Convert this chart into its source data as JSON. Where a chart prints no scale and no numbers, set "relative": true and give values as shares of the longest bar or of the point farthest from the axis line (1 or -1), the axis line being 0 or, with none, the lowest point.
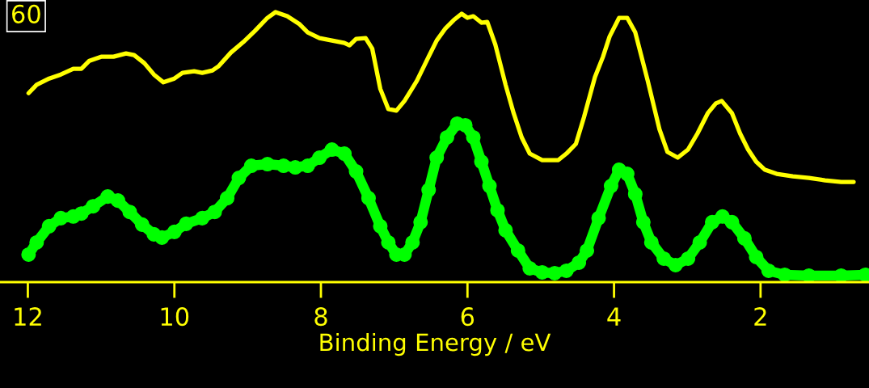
{
  "chart_data": {
    "type": "line",
    "relative": true,
    "xlabel": "Binding Energy / eV",
    "xlim": [
      12.38,
      0.52
    ],
    "xticks": [
      12,
      10,
      8,
      6,
      4,
      2
    ],
    "grid": false,
    "legend": false,
    "annotations": [
      "60"
    ],
    "series": [
      {
        "color": "#ffff00",
        "marker": "none",
        "line_style": "solid",
        "x": [
          11.99,
          11.88,
          11.71,
          11.55,
          11.38,
          11.27,
          11.16,
          11.0,
          10.83,
          10.66,
          10.55,
          10.41,
          10.28,
          10.15,
          10.0,
          9.89,
          9.73,
          9.62,
          9.48,
          9.4,
          9.23,
          9.06,
          8.9,
          8.73,
          8.62,
          8.46,
          8.29,
          8.18,
          8.02,
          7.85,
          7.68,
          7.61,
          7.52,
          7.39,
          7.3,
          7.19,
          7.08,
          6.97,
          6.86,
          6.69,
          6.53,
          6.42,
          6.3,
          6.19,
          6.08,
          6.0,
          5.92,
          5.81,
          5.73,
          5.62,
          5.48,
          5.37,
          5.26,
          5.15,
          4.98,
          4.76,
          4.65,
          4.52,
          4.41,
          4.26,
          4.15,
          4.06,
          3.93,
          3.82,
          3.71,
          3.54,
          3.38,
          3.27,
          3.13,
          2.99,
          2.86,
          2.72,
          2.61,
          2.53,
          2.39,
          2.28,
          2.17,
          2.06,
          1.94,
          1.78,
          1.56,
          1.34,
          1.12,
          0.9,
          0.73
        ],
        "values": [
          0.7,
          0.731,
          0.754,
          0.769,
          0.79,
          0.79,
          0.82,
          0.835,
          0.835,
          0.847,
          0.841,
          0.811,
          0.769,
          0.74,
          0.754,
          0.775,
          0.781,
          0.775,
          0.784,
          0.799,
          0.85,
          0.889,
          0.931,
          0.979,
          1.0,
          0.985,
          0.955,
          0.925,
          0.904,
          0.895,
          0.886,
          0.877,
          0.901,
          0.904,
          0.865,
          0.716,
          0.641,
          0.635,
          0.671,
          0.746,
          0.835,
          0.895,
          0.94,
          0.97,
          0.994,
          0.979,
          0.985,
          0.961,
          0.964,
          0.88,
          0.731,
          0.626,
          0.536,
          0.476,
          0.452,
          0.452,
          0.476,
          0.512,
          0.611,
          0.76,
          0.835,
          0.91,
          0.979,
          0.979,
          0.925,
          0.746,
          0.566,
          0.482,
          0.461,
          0.491,
          0.551,
          0.626,
          0.662,
          0.671,
          0.626,
          0.551,
          0.491,
          0.446,
          0.416,
          0.401,
          0.392,
          0.386,
          0.377,
          0.371,
          0.371
        ]
      },
      {
        "color": "#00ff00",
        "marker": "circle",
        "line_style": "solid",
        "x": [
          11.99,
          11.88,
          11.71,
          11.55,
          11.38,
          11.27,
          11.11,
          10.91,
          10.77,
          10.61,
          10.44,
          10.28,
          10.17,
          10.0,
          9.84,
          9.62,
          9.45,
          9.28,
          9.12,
          8.95,
          8.73,
          8.51,
          8.35,
          8.18,
          8.02,
          7.85,
          7.68,
          7.52,
          7.35,
          7.19,
          7.08,
          6.97,
          6.86,
          6.75,
          6.64,
          6.53,
          6.42,
          6.28,
          6.14,
          6.03,
          5.92,
          5.81,
          5.7,
          5.59,
          5.48,
          5.31,
          5.15,
          4.98,
          4.81,
          4.65,
          4.48,
          4.37,
          4.21,
          4.04,
          3.93,
          3.82,
          3.71,
          3.6,
          3.49,
          3.32,
          3.16,
          2.99,
          2.83,
          2.66,
          2.52,
          2.39,
          2.22,
          2.06,
          1.89,
          1.67,
          1.34,
          0.9,
          0.57
        ],
        "values": [
          0.102,
          0.147,
          0.207,
          0.237,
          0.243,
          0.254,
          0.281,
          0.317,
          0.302,
          0.26,
          0.213,
          0.177,
          0.165,
          0.186,
          0.216,
          0.237,
          0.26,
          0.311,
          0.386,
          0.431,
          0.437,
          0.431,
          0.425,
          0.431,
          0.461,
          0.491,
          0.476,
          0.41,
          0.311,
          0.207,
          0.147,
          0.102,
          0.102,
          0.147,
          0.222,
          0.341,
          0.461,
          0.536,
          0.587,
          0.581,
          0.536,
          0.446,
          0.356,
          0.266,
          0.192,
          0.117,
          0.051,
          0.036,
          0.033,
          0.042,
          0.072,
          0.117,
          0.237,
          0.356,
          0.416,
          0.401,
          0.326,
          0.222,
          0.147,
          0.087,
          0.063,
          0.087,
          0.147,
          0.222,
          0.243,
          0.222,
          0.162,
          0.093,
          0.042,
          0.027,
          0.024,
          0.024,
          0.027
        ]
      }
    ]
  }
}
